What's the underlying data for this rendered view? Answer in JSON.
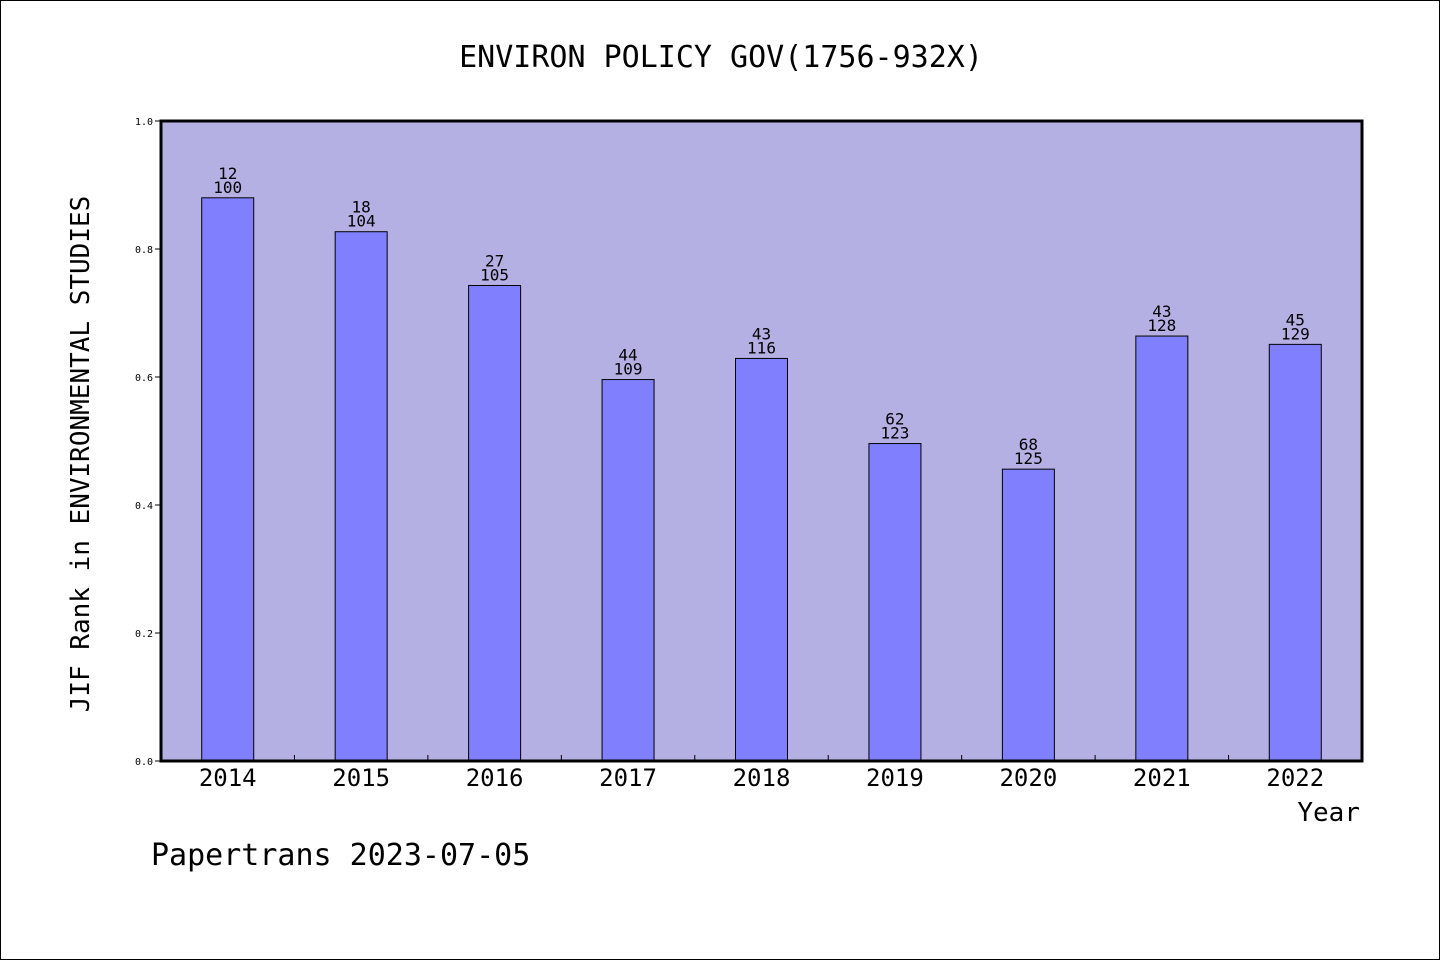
{
  "chart_data": {
    "type": "bar",
    "title": "ENVIRON POLICY GOV(1756-932X)",
    "xlabel": "Year",
    "ylabel": "JIF Rank in ENVIRONMENTAL STUDIES",
    "categories": [
      "2014",
      "2015",
      "2016",
      "2017",
      "2018",
      "2019",
      "2020",
      "2021",
      "2022"
    ],
    "values": [
      0.88,
      0.827,
      0.743,
      0.596,
      0.629,
      0.496,
      0.456,
      0.664,
      0.651
    ],
    "rank_labels": [
      "12",
      "18",
      "27",
      "44",
      "43",
      "62",
      "68",
      "43",
      "45"
    ],
    "total_labels": [
      "100",
      "104",
      "105",
      "109",
      "116",
      "123",
      "125",
      "128",
      "129"
    ],
    "yticks": [
      "0.0",
      "0.2",
      "0.4",
      "0.6",
      "0.8",
      "1.0"
    ],
    "ylim": [
      0,
      1.0
    ],
    "grid": false,
    "footer": "Papertrans 2023-07-05",
    "colors": {
      "plot_background": "#b5b0e3",
      "bar": "#8080ff",
      "bar_edge": "#000000"
    }
  }
}
